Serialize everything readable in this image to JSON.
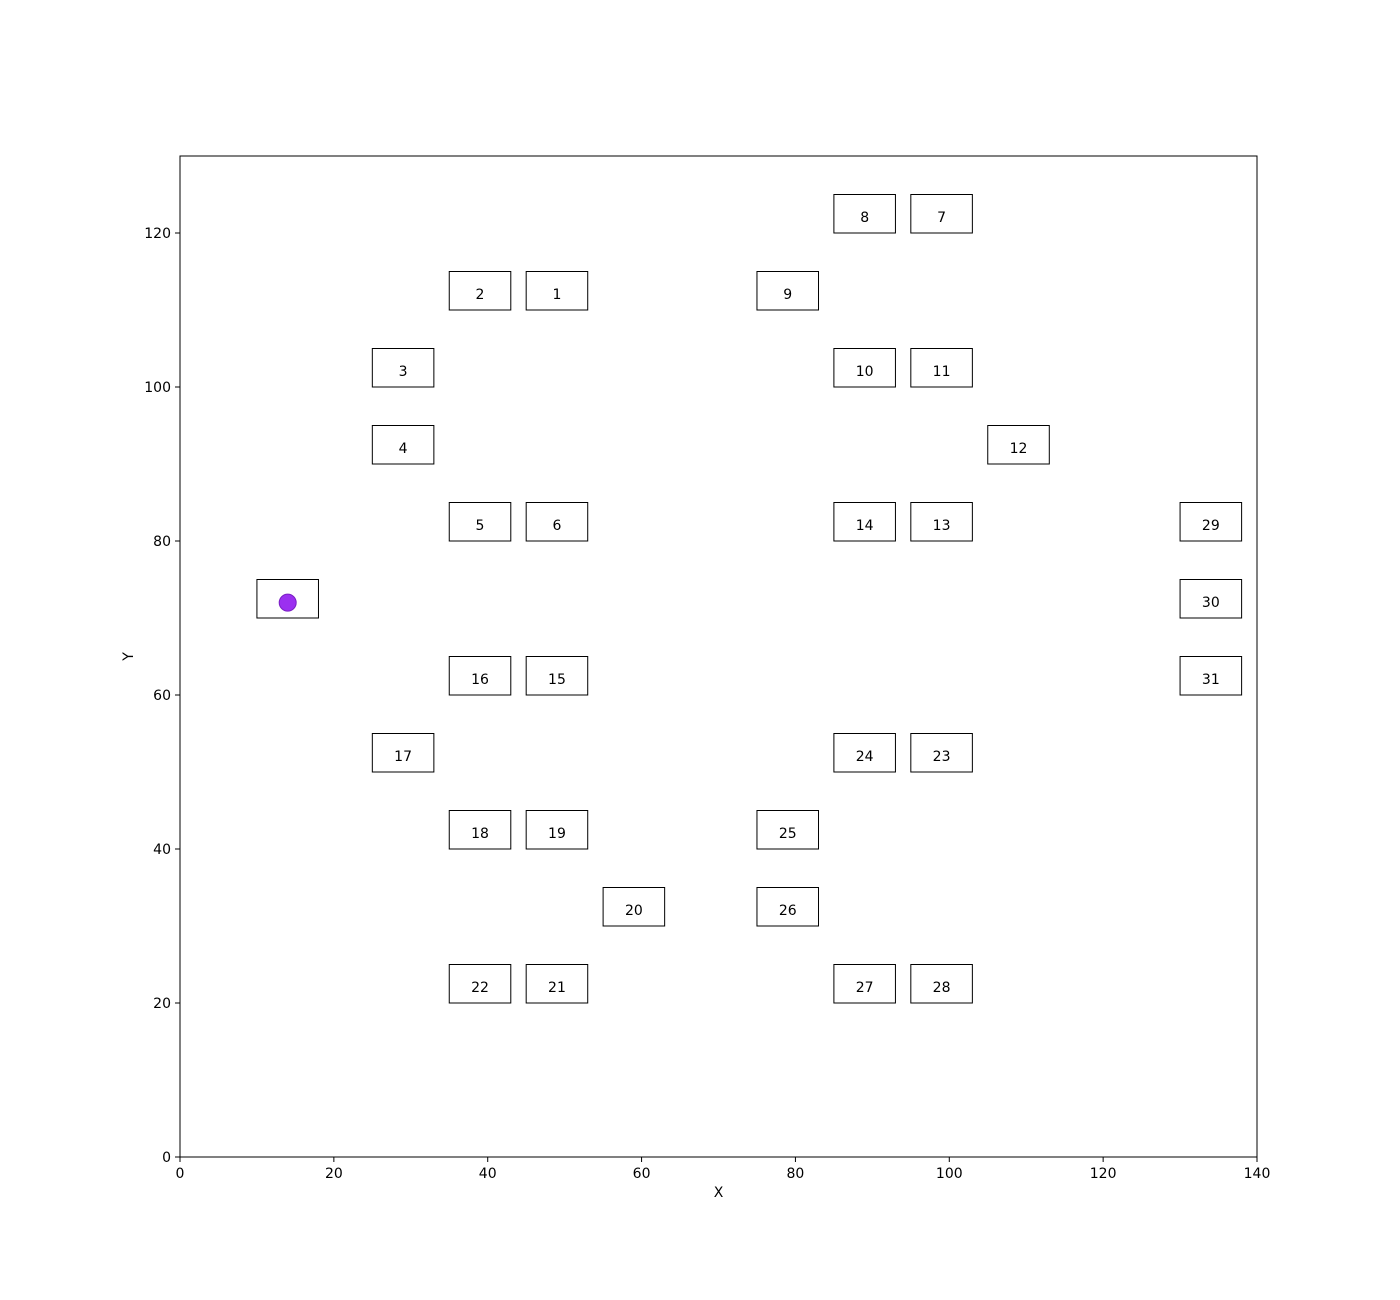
{
  "chart_data": {
    "type": "scatter",
    "title": "",
    "xlabel": "X",
    "ylabel": "Y",
    "xlim": [
      0,
      140
    ],
    "ylim": [
      0,
      130
    ],
    "xticks": [
      "0",
      "20",
      "40",
      "60",
      "80",
      "100",
      "120",
      "140"
    ],
    "yticks": [
      "0",
      "20",
      "40",
      "60",
      "80",
      "100",
      "120"
    ],
    "grid": false,
    "legend": "none",
    "box_size": [
      8,
      5
    ],
    "boxes": [
      {
        "label": "1",
        "x": 45,
        "y": 110
      },
      {
        "label": "2",
        "x": 35,
        "y": 110
      },
      {
        "label": "3",
        "x": 25,
        "y": 100
      },
      {
        "label": "4",
        "x": 25,
        "y": 90
      },
      {
        "label": "5",
        "x": 35,
        "y": 80
      },
      {
        "label": "6",
        "x": 45,
        "y": 80
      },
      {
        "label": "7",
        "x": 95,
        "y": 120
      },
      {
        "label": "8",
        "x": 85,
        "y": 120
      },
      {
        "label": "9",
        "x": 75,
        "y": 110
      },
      {
        "label": "10",
        "x": 85,
        "y": 100
      },
      {
        "label": "11",
        "x": 95,
        "y": 100
      },
      {
        "label": "12",
        "x": 105,
        "y": 90
      },
      {
        "label": "13",
        "x": 95,
        "y": 80
      },
      {
        "label": "14",
        "x": 85,
        "y": 80
      },
      {
        "label": "15",
        "x": 45,
        "y": 60
      },
      {
        "label": "16",
        "x": 35,
        "y": 60
      },
      {
        "label": "17",
        "x": 25,
        "y": 50
      },
      {
        "label": "18",
        "x": 35,
        "y": 40
      },
      {
        "label": "19",
        "x": 45,
        "y": 40
      },
      {
        "label": "20",
        "x": 55,
        "y": 30
      },
      {
        "label": "21",
        "x": 45,
        "y": 20
      },
      {
        "label": "22",
        "x": 35,
        "y": 20
      },
      {
        "label": "23",
        "x": 95,
        "y": 50
      },
      {
        "label": "24",
        "x": 85,
        "y": 50
      },
      {
        "label": "25",
        "x": 75,
        "y": 40
      },
      {
        "label": "26",
        "x": 75,
        "y": 30
      },
      {
        "label": "27",
        "x": 85,
        "y": 20
      },
      {
        "label": "28",
        "x": 95,
        "y": 20
      },
      {
        "label": "29",
        "x": 130,
        "y": 80
      },
      {
        "label": "30",
        "x": 130,
        "y": 70
      },
      {
        "label": "31",
        "x": 130,
        "y": 60
      },
      {
        "label": "",
        "x": 10,
        "y": 70
      }
    ],
    "points": [
      {
        "x": 14,
        "y": 72,
        "color": "#9b30f0"
      }
    ]
  }
}
